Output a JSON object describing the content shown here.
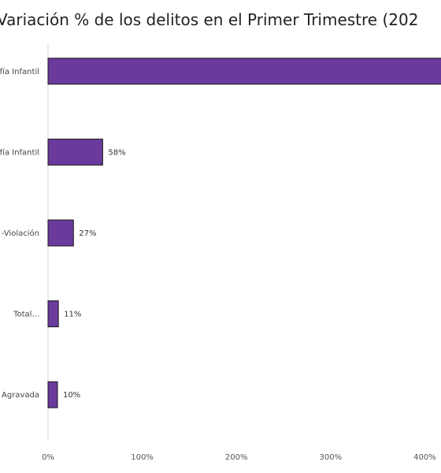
{
  "chart_data": {
    "type": "bar",
    "orientation": "horizontal",
    "title": "Variación % de los delitos en el Primer Trimestre (202",
    "categories": [
      "fía Infantil",
      "fía Infantil",
      "-Violación",
      "Total...",
      "e Agravada"
    ],
    "values": [
      420,
      58,
      27,
      11,
      10
    ],
    "data_labels": [
      "",
      "58%",
      "27%",
      "11%",
      "10%"
    ],
    "x_ticks": [
      "0%",
      "100%",
      "200%",
      "300%",
      "400%"
    ],
    "x_tick_values": [
      0,
      100,
      200,
      300,
      400
    ],
    "xlim": [
      0,
      420
    ],
    "grid": false,
    "bar_color": "#6a3a9c",
    "bar_edge_color": "#1a1a1a"
  }
}
